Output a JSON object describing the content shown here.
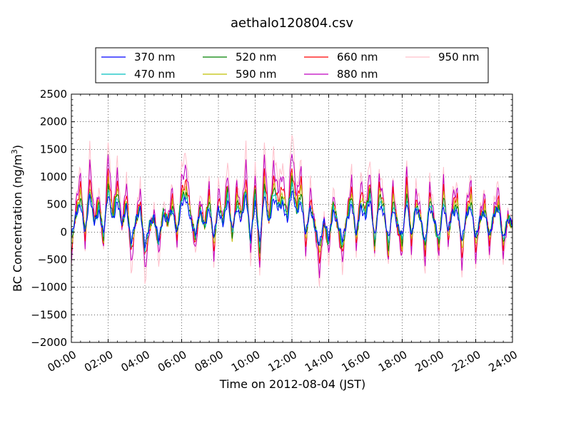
{
  "chart_data": {
    "type": "line",
    "title": "aethalo120804.csv",
    "xlabel": "Time on 2012-08-04 (JST)",
    "ylabel_main": "BC Concentration (ng/m",
    "ylabel_sup": "3",
    "ylabel_close": ")",
    "xlim": [
      "00:00",
      "24:00"
    ],
    "ylim": [
      -2000,
      2500
    ],
    "x_ticks": [
      "00:00",
      "02:00",
      "04:00",
      "06:00",
      "08:00",
      "10:00",
      "12:00",
      "14:00",
      "16:00",
      "18:00",
      "20:00",
      "22:00",
      "24:00"
    ],
    "y_ticks": [
      "−2000",
      "−1500",
      "−1000",
      "−500",
      "0",
      "500",
      "1000",
      "1500",
      "2000",
      "2500"
    ],
    "grid": true,
    "legend_position": "top",
    "series": [
      {
        "name": "370 nm",
        "color": "#0000ff",
        "amp": 0.55
      },
      {
        "name": "470 nm",
        "color": "#00bfbf",
        "amp": 0.65
      },
      {
        "name": "520 nm",
        "color": "#008000",
        "amp": 0.75
      },
      {
        "name": "590 nm",
        "color": "#bfbf00",
        "amp": 0.85
      },
      {
        "name": "660 nm",
        "color": "#ff0000",
        "amp": 1.0
      },
      {
        "name": "880 nm",
        "color": "#bf00bf",
        "amp": 1.3
      },
      {
        "name": "950 nm",
        "color": "#ffc0cb",
        "amp": 1.6
      }
    ],
    "base_profile_hour": [
      0,
      0.25,
      0.5,
      0.75,
      1,
      1.25,
      1.5,
      1.75,
      2,
      2.25,
      2.5,
      2.75,
      3,
      3.25,
      3.5,
      3.75,
      4,
      4.25,
      4.5,
      4.75,
      5,
      5.25,
      5.5,
      5.75,
      6,
      6.25,
      6.5,
      6.75,
      7,
      7.25,
      7.5,
      7.75,
      8,
      8.25,
      8.5,
      8.75,
      9,
      9.25,
      9.5,
      9.75,
      10,
      10.25,
      10.5,
      10.75,
      11,
      11.25,
      11.5,
      11.75,
      12,
      12.25,
      12.5,
      12.75,
      13,
      13.25,
      13.5,
      13.75,
      14,
      14.25,
      14.5,
      14.75,
      15,
      15.25,
      15.5,
      15.75,
      16,
      16.25,
      16.5,
      16.75,
      17,
      17.25,
      17.5,
      17.75,
      18,
      18.25,
      18.5,
      18.75,
      19,
      19.25,
      19.5,
      19.75,
      20,
      20.25,
      20.5,
      20.75,
      21,
      21.25,
      21.5,
      21.75,
      22,
      22.25,
      22.5,
      22.75,
      23,
      23.25,
      23.5,
      23.75,
      24
    ],
    "base_profile_value": [
      -300,
      400,
      800,
      -100,
      1000,
      200,
      600,
      -200,
      1100,
      300,
      900,
      100,
      700,
      -400,
      200,
      600,
      -500,
      100,
      300,
      -300,
      400,
      200,
      600,
      -100,
      800,
      900,
      300,
      -200,
      500,
      100,
      700,
      -300,
      600,
      200,
      900,
      -100,
      700,
      300,
      1000,
      -300,
      900,
      -500,
      1100,
      200,
      1000,
      600,
      800,
      300,
      1200,
      500,
      900,
      -200,
      600,
      100,
      -500,
      200,
      -300,
      600,
      100,
      -400,
      300,
      800,
      -200,
      700,
      400,
      900,
      -300,
      800,
      500,
      -400,
      700,
      100,
      -300,
      900,
      -200,
      600,
      300,
      -400,
      700,
      200,
      -300,
      800,
      -100,
      500,
      600,
      -400,
      400,
      700,
      -300,
      300,
      500,
      -200,
      400,
      600,
      -300,
      300,
      100
    ]
  }
}
